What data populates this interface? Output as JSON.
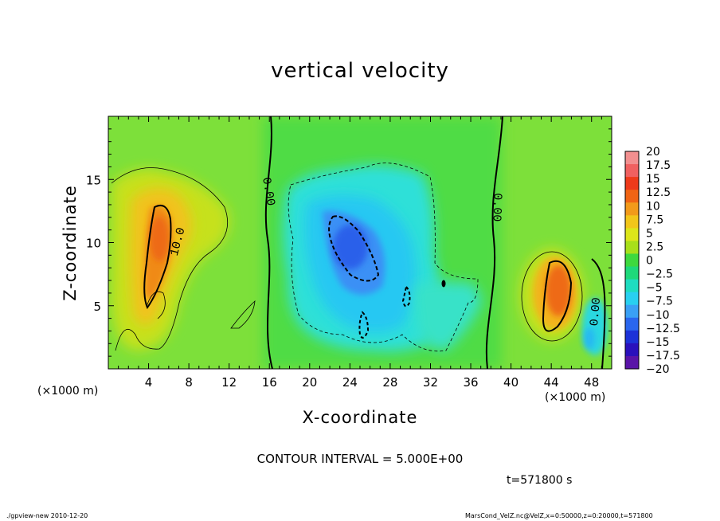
{
  "chart_data": {
    "type": "heatmap",
    "title": "vertical velocity",
    "xlabel": "X-coordinate",
    "ylabel": "Z-coordinate",
    "x_unit_label": "(×1000 m)",
    "x_ticks": [
      4,
      8,
      12,
      16,
      20,
      24,
      28,
      32,
      36,
      40,
      44,
      48
    ],
    "y_ticks": [
      5,
      10,
      15
    ],
    "xlim": [
      0,
      50
    ],
    "ylim": [
      0,
      20
    ],
    "colorbar": {
      "ticks": [
        "20",
        "17.5",
        "15",
        "12.5",
        "10",
        "7.5",
        "5",
        "2.5",
        "0",
        "−2.5",
        "−5",
        "−7.5",
        "−10",
        "−12.5",
        "−15",
        "−17.5",
        "−20"
      ],
      "colors": [
        "#f28f8f",
        "#f06060",
        "#ee3a1a",
        "#f06414",
        "#f29a1a",
        "#f2c61a",
        "#dce61a",
        "#a8e01a",
        "#3ed93e",
        "#1ed97a",
        "#1edcc0",
        "#28d0f0",
        "#3aa0f5",
        "#2a66ee",
        "#1c32d8",
        "#2a10bc",
        "#5a14a8"
      ]
    },
    "contour_labels": [
      {
        "text": "0.00",
        "x": 15.6,
        "y": 14.0,
        "angle": 80
      },
      {
        "text": "0.00",
        "x": 38.3,
        "y": 12.8,
        "angle": 92
      },
      {
        "text": "10.0",
        "x": 7.2,
        "y": 10.0,
        "angle": -75
      },
      {
        "text": "0.00",
        "x": 48.7,
        "y": 4.5,
        "angle": -85
      }
    ]
  },
  "contour_interval": "CONTOUR INTERVAL = 5.000E+00",
  "time_label": "t=571800 s",
  "footer_left": "./gpview-new 2010-12-20",
  "footer_right": "MarsCond_VelZ.nc@VelZ,x=0:50000,z=0:20000,t=571800"
}
